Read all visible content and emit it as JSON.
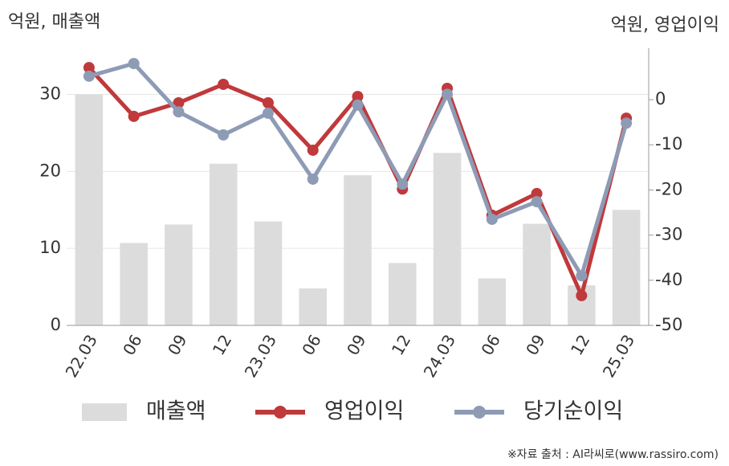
{
  "chart_data": {
    "type": "combo",
    "y_axis_label": "억원, 매출액",
    "y2_axis_label": "억원, 영업이익",
    "categories": [
      "22.03",
      "06",
      "09",
      "12",
      "23.03",
      "06",
      "09",
      "12",
      "24.03",
      "06",
      "09",
      "12",
      "25.03"
    ],
    "series": [
      {
        "name": "매출액",
        "type": "bar",
        "color": "#dcdcdc",
        "values": [
          30,
          10.7,
          13.1,
          21,
          13.5,
          4.8,
          19.5,
          8.1,
          22.4,
          6.1,
          13.2,
          5.2,
          15
        ]
      },
      {
        "name": "영업이익",
        "type": "line",
        "axis": "y2",
        "color": "#c0393b",
        "values": [
          7.1,
          -3.7,
          -0.7,
          3.4,
          -0.7,
          -11.2,
          0.7,
          -19.8,
          2.5,
          -25.6,
          -20.8,
          -43.4,
          -4.1
        ]
      },
      {
        "name": "당기순이익",
        "type": "line",
        "axis": "y2",
        "color": "#8e9bb5",
        "values": [
          5.2,
          8.0,
          -2.7,
          -7.8,
          -3.0,
          -17.6,
          -1.2,
          -18.7,
          1.2,
          -26.5,
          -22.6,
          -39.0,
          -5.2
        ]
      }
    ],
    "ylim": [
      0,
      36
    ],
    "yticks": [
      0,
      10,
      20,
      30
    ],
    "y2lim": [
      -50,
      11.4
    ],
    "y2ticks": [
      -50,
      -40,
      -30,
      -20,
      -10,
      0
    ],
    "grid": true,
    "legend": "bottom",
    "source": "※자료 출처 : AI라씨로(www.rassiro.com)"
  }
}
